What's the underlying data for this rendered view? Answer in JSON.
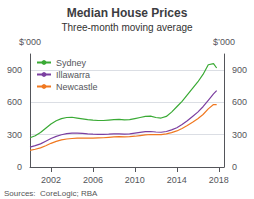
{
  "chart_data": {
    "type": "line",
    "title": "Median House Prices",
    "subtitle": "Three-month moving average",
    "annotations": [
      "Sources:  CoreLogic; RBA"
    ],
    "ylabel": "$’000",
    "y2label": "$’000",
    "x": [
      2000.0,
      2000.5,
      2001.0,
      2001.5,
      2002.0,
      2002.5,
      2003.0,
      2003.5,
      2004.0,
      2004.5,
      2005.0,
      2005.5,
      2006.0,
      2006.5,
      2007.0,
      2007.5,
      2008.0,
      2008.5,
      2009.0,
      2009.5,
      2010.0,
      2010.5,
      2011.0,
      2011.5,
      2012.0,
      2012.5,
      2013.0,
      2013.5,
      2014.0,
      2014.5,
      2015.0,
      2015.5,
      2016.0,
      2016.5,
      2017.0,
      2017.5,
      2017.8
    ],
    "series": [
      {
        "name": "Sydney",
        "color": "#3aaa35",
        "values": [
          272,
          290,
          320,
          360,
          400,
          430,
          450,
          460,
          462,
          455,
          448,
          440,
          435,
          432,
          432,
          436,
          440,
          442,
          438,
          440,
          450,
          460,
          470,
          472,
          460,
          455,
          470,
          510,
          560,
          610,
          670,
          730,
          790,
          860,
          950,
          960,
          920
        ]
      },
      {
        "name": "Illawarra",
        "color": "#7b3fa0",
        "values": [
          185,
          198,
          215,
          240,
          265,
          285,
          300,
          310,
          315,
          315,
          312,
          308,
          305,
          303,
          303,
          305,
          308,
          308,
          305,
          308,
          315,
          322,
          328,
          330,
          325,
          323,
          330,
          345,
          365,
          395,
          430,
          470,
          510,
          560,
          620,
          680,
          710
        ]
      },
      {
        "name": "Newcastle",
        "color": "#f07820",
        "values": [
          155,
          165,
          178,
          198,
          220,
          238,
          252,
          260,
          265,
          268,
          268,
          268,
          268,
          270,
          272,
          276,
          280,
          282,
          280,
          282,
          286,
          292,
          298,
          302,
          300,
          300,
          308,
          320,
          335,
          358,
          385,
          415,
          448,
          488,
          540,
          580,
          580
        ]
      }
    ],
    "xlim": [
      2000.0,
      2018.5
    ],
    "xticks": [
      2002,
      2006,
      2010,
      2014,
      2018
    ],
    "ylim": [
      0,
      1050
    ],
    "yticks": [
      0,
      300,
      600,
      900
    ],
    "y2lim": [
      0,
      1050
    ],
    "y2ticks": [
      0,
      300,
      600,
      900
    ],
    "grid": true,
    "legend": "upper left"
  }
}
